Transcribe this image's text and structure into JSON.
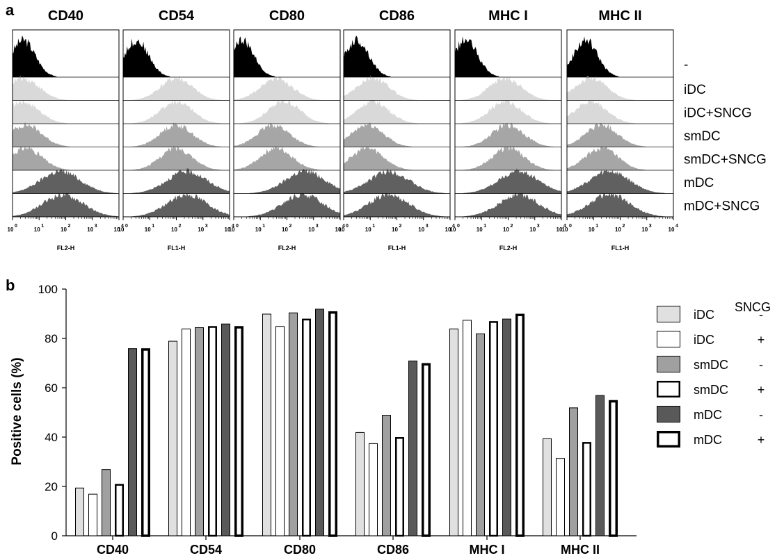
{
  "panel_a": {
    "label": "a",
    "markers": [
      "CD40",
      "CD54",
      "CD80",
      "CD86",
      "MHC I",
      "MHC II"
    ],
    "channels": [
      "FL2-H",
      "FL1-H",
      "FL2-H",
      "FL1-H",
      "FL2-H",
      "FL1-H"
    ],
    "row_labels": [
      "-",
      "iDC",
      "iDC+SNCG",
      "smDC",
      "smDC+SNCG",
      "mDC",
      "mDC+SNCG"
    ],
    "x_scale": "log",
    "x_ticks": [
      "10^0",
      "10^1",
      "10^2",
      "10^3",
      "10^4"
    ],
    "fill_colors": [
      "#000000",
      "#d9d9d9",
      "#d9d9d9",
      "#a6a6a6",
      "#a6a6a6",
      "#606060",
      "#606060"
    ],
    "peak_positions_log10": [
      [
        0.4,
        0.4,
        0.4,
        0.5,
        0.5,
        1.8,
        1.9
      ],
      [
        0.5,
        2.0,
        2.0,
        2.0,
        2.0,
        2.4,
        2.4
      ],
      [
        0.3,
        1.6,
        1.9,
        1.5,
        1.6,
        2.7,
        2.6
      ],
      [
        0.5,
        1.1,
        1.1,
        0.9,
        0.9,
        1.7,
        1.7
      ],
      [
        0.4,
        1.9,
        1.9,
        2.0,
        2.0,
        2.4,
        2.4
      ],
      [
        0.7,
        0.9,
        0.9,
        1.3,
        1.3,
        1.6,
        1.6
      ]
    ]
  },
  "chart_data": {
    "type": "bar",
    "panel_label": "b",
    "categories": [
      "CD40",
      "CD54",
      "CD80",
      "CD86",
      "MHC I",
      "MHC II"
    ],
    "ylabel": "Positive cells (%)",
    "ylim": [
      0,
      100
    ],
    "yticks": [
      0,
      20,
      40,
      60,
      80,
      100
    ],
    "grid": false,
    "legend_placement": "right",
    "legend_title": "SNCG",
    "series": [
      {
        "name": "iDC",
        "sncg": "-",
        "fill": "#e0e0e0",
        "outline": "thin",
        "values": [
          19.5,
          79,
          90,
          42,
          84,
          39.5
        ]
      },
      {
        "name": "iDC",
        "sncg": "+",
        "fill": "#ffffff",
        "outline": "thin",
        "values": [
          17,
          84,
          85,
          37.5,
          87.5,
          31.5
        ]
      },
      {
        "name": "smDC",
        "sncg": "-",
        "fill": "#a0a0a0",
        "outline": "thin",
        "values": [
          27,
          84.5,
          90.5,
          49,
          82,
          52
        ]
      },
      {
        "name": "smDC",
        "sncg": "+",
        "fill": "#ffffff",
        "outline": "medium",
        "values": [
          21,
          85,
          88,
          40,
          87,
          38
        ]
      },
      {
        "name": "mDC",
        "sncg": "-",
        "fill": "#595959",
        "outline": "thin",
        "values": [
          76,
          86,
          92,
          71,
          88,
          57
        ]
      },
      {
        "name": "mDC",
        "sncg": "+",
        "fill": "#ffffff",
        "outline": "thick",
        "values": [
          76,
          85,
          91,
          70,
          90,
          55
        ]
      }
    ]
  }
}
